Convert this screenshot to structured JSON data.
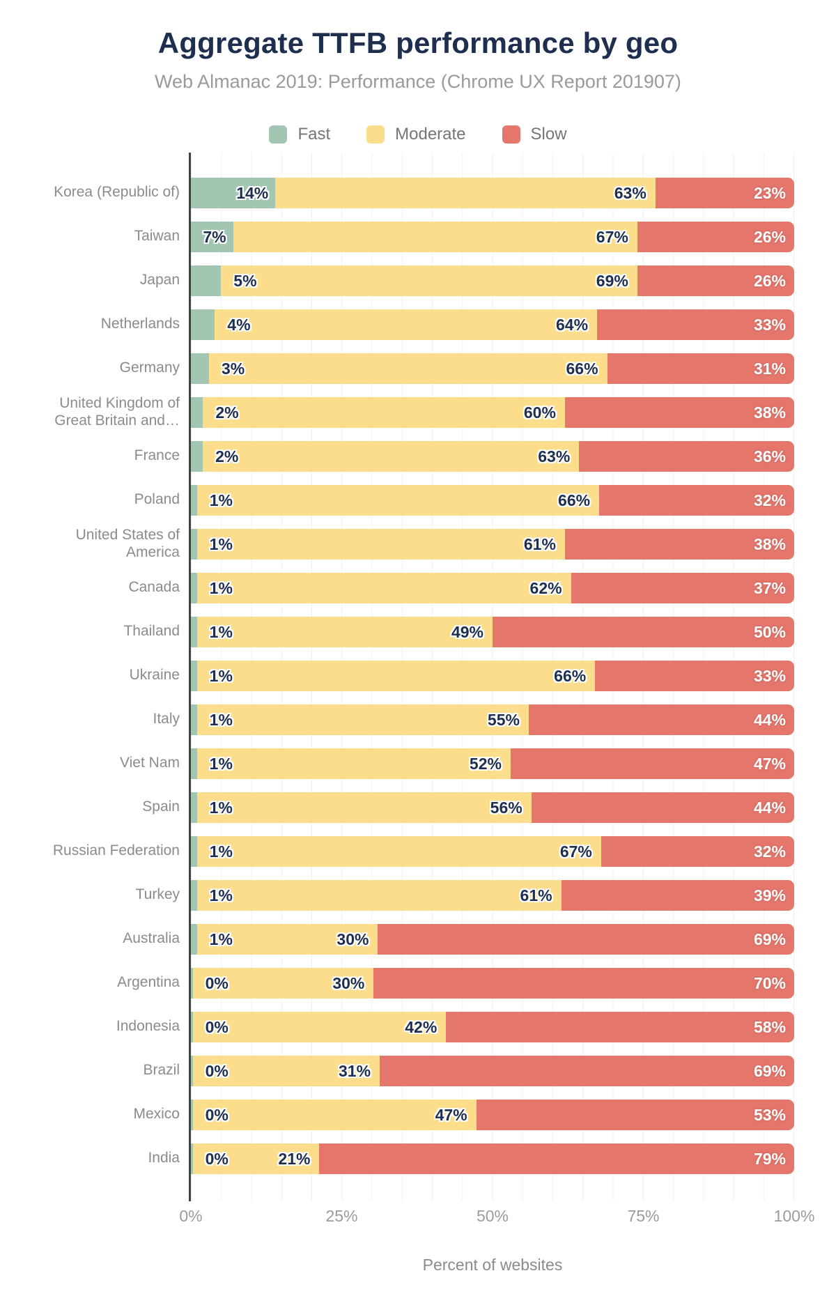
{
  "title": "Aggregate TTFB performance by geo",
  "subtitle": "Web Almanac 2019: Performance (Chrome UX Report 201907)",
  "legend": [
    {
      "label": "Fast",
      "color": "#a3c6b2"
    },
    {
      "label": "Moderate",
      "color": "#fcdd8c"
    },
    {
      "label": "Slow",
      "color": "#e4766c"
    }
  ],
  "colors": {
    "title_text": "#1e2e4f",
    "muted_text": "#9a9a9a",
    "axis_line": "#414141",
    "gridline": "#f0f0f0",
    "value_label_dark": "#1e2e4f",
    "value_label_light": "#ffffff"
  },
  "chart_data": {
    "type": "bar",
    "stacked": true,
    "orientation": "horizontal",
    "title": "Aggregate TTFB performance by geo",
    "subtitle": "Web Almanac 2019: Performance (Chrome UX Report 201907)",
    "xlabel": "Percent of websites",
    "ylabel": "",
    "xlim": [
      0,
      100
    ],
    "x_ticks": [
      "0%",
      "25%",
      "50%",
      "75%",
      "100%"
    ],
    "grid": "vertical lines every 5%",
    "legend_position": "top",
    "value_label_format": "integer percent",
    "categories": [
      "Korea (Republic of)",
      "Taiwan",
      "Japan",
      "Netherlands",
      "Germany",
      "United Kingdom of Great Britain and…",
      "France",
      "Poland",
      "United States of America",
      "Canada",
      "Thailand",
      "Ukraine",
      "Italy",
      "Viet Nam",
      "Spain",
      "Russian Federation",
      "Turkey",
      "Australia",
      "Argentina",
      "Indonesia",
      "Brazil",
      "Mexico",
      "India"
    ],
    "series": [
      {
        "name": "Fast",
        "values": [
          14,
          7,
          5,
          4,
          3,
          2,
          2,
          1,
          1,
          1,
          1,
          1,
          1,
          1,
          1,
          1,
          1,
          1,
          0,
          0,
          0,
          0,
          0
        ]
      },
      {
        "name": "Moderate",
        "values": [
          63,
          67,
          69,
          64,
          66,
          60,
          63,
          66,
          61,
          62,
          49,
          66,
          55,
          52,
          56,
          67,
          61,
          30,
          30,
          42,
          31,
          47,
          21
        ]
      },
      {
        "name": "Slow",
        "values": [
          23,
          26,
          26,
          33,
          31,
          38,
          36,
          32,
          38,
          37,
          50,
          33,
          44,
          47,
          44,
          32,
          39,
          69,
          70,
          58,
          69,
          53,
          79
        ]
      }
    ]
  }
}
